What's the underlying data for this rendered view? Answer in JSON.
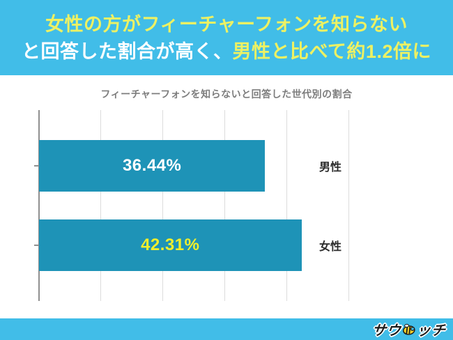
{
  "header": {
    "line1": "女性の方がフィーチャーフォンを知らない",
    "line2_white": "と回答した割合が高く、",
    "line2_yellow": "男性と比べて約1.2倍に",
    "bg_color": "#41bde8",
    "yellow_color": "#edf163",
    "white_color": "#ffffff"
  },
  "chart_data": {
    "type": "bar",
    "orientation": "horizontal",
    "title": "フィーチャーフォンを知らないと回答した世代別の割合",
    "categories": [
      "男性",
      "女性"
    ],
    "values": [
      36.44,
      42.31
    ],
    "value_labels": [
      "36.44%",
      "42.31%"
    ],
    "value_label_colors": [
      "#ffffff",
      "#f1ef2b"
    ],
    "bar_color": "#1e93b7",
    "x_ticks": [
      "0%",
      "10%",
      "20%",
      "30%",
      "40%",
      "50%"
    ],
    "xlim": [
      0,
      50
    ],
    "grid": true,
    "legend_position": "none"
  },
  "footer": {
    "logo_part1": "サウ",
    "logo_part2": "ッチ",
    "mascot_icon": "bee-mascot-icon",
    "bg_color": "#41bde8"
  }
}
